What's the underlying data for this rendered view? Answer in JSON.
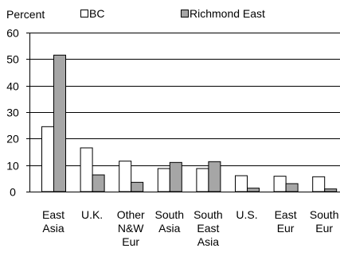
{
  "chart_data": {
    "type": "bar",
    "ylabel": "Percent",
    "ylim": [
      0,
      60
    ],
    "yticks": [
      0,
      10,
      20,
      30,
      40,
      50,
      60
    ],
    "grid": true,
    "legend_position": "top",
    "categories": [
      [
        "East",
        "Asia"
      ],
      [
        "U.K."
      ],
      [
        "Other",
        "N&W",
        "Eur"
      ],
      [
        "South",
        "Asia"
      ],
      [
        "South",
        "East",
        "Asia"
      ],
      [
        "U.S."
      ],
      [
        "East",
        "Eur"
      ],
      [
        "South",
        "Eur"
      ]
    ],
    "series": [
      {
        "name": "BC",
        "color": "#ffffff",
        "values": [
          24.5,
          16.5,
          11.5,
          8.7,
          8.7,
          6.0,
          5.8,
          5.6
        ]
      },
      {
        "name": "Richmond East",
        "color": "#a6a6a6",
        "values": [
          51.5,
          6.3,
          3.5,
          11.0,
          11.3,
          1.3,
          3.0,
          1.0
        ]
      }
    ]
  }
}
